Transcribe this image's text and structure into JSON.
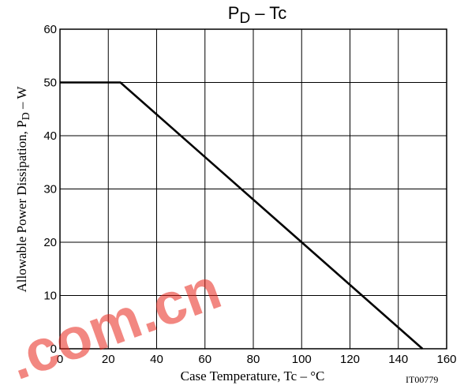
{
  "chart_data": {
    "type": "line",
    "title": {
      "main": "P",
      "sub": "D",
      "rest": " – Tc"
    },
    "xlabel": "Case Temperature, Tc  –  °C",
    "ylabel": {
      "main": "Allowable Power Dissipation, P",
      "sub": "D",
      "rest": "  –  W"
    },
    "xlim": [
      0,
      160
    ],
    "ylim": [
      0,
      60
    ],
    "xticks": [
      0,
      20,
      40,
      60,
      80,
      100,
      120,
      140,
      160
    ],
    "yticks": [
      0,
      10,
      20,
      30,
      40,
      50,
      60
    ],
    "grid": true,
    "series": [
      {
        "x": [
          0,
          25,
          150
        ],
        "y": [
          50,
          50,
          0
        ]
      }
    ],
    "code": "IT00779",
    "watermark": {
      "text": ".com.cn",
      "color": "#e8261b"
    }
  }
}
